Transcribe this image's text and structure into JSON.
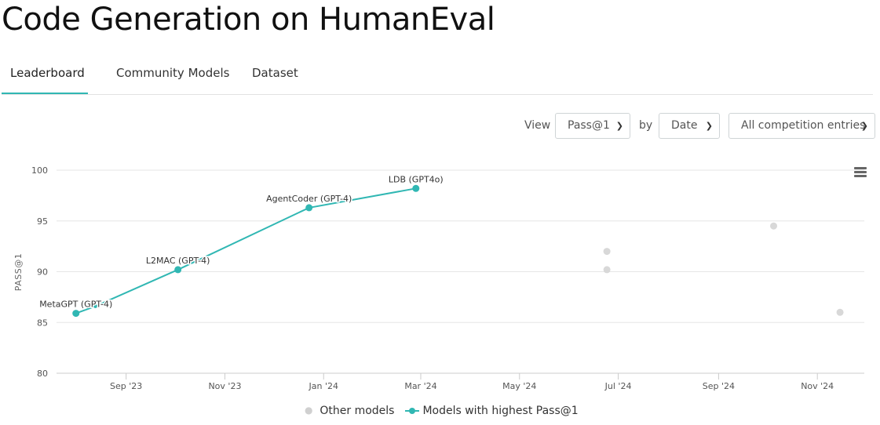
{
  "page": {
    "title": "Code Generation on HumanEval"
  },
  "tabs": [
    {
      "label": "Leaderboard",
      "active": true
    },
    {
      "label": "Community Models",
      "active": false
    },
    {
      "label": "Dataset",
      "active": false
    }
  ],
  "controls": {
    "view_label": "View",
    "metric_value": "Pass@1",
    "by_label": "by",
    "sort_value": "Date",
    "filter_value": "All competition entries"
  },
  "colors": {
    "accent": "#30b7b3",
    "other_models": "#d8d8d8",
    "grid": "#e6e6e6"
  },
  "icons": {
    "chart_menu": "hamburger-menu-icon",
    "dropdown": "chevron-down-icon"
  },
  "chart_data": {
    "type": "scatter",
    "ylabel": "PASS@1",
    "xlabel": "",
    "ylim": [
      80,
      100
    ],
    "yticks": [
      80,
      85,
      90,
      95,
      100
    ],
    "xlim": [
      "2023-07-20",
      "2024-11-30"
    ],
    "xticks": [
      {
        "date": "2023-09-01",
        "label": "Sep '23"
      },
      {
        "date": "2023-11-01",
        "label": "Nov '23"
      },
      {
        "date": "2024-01-01",
        "label": "Jan '24"
      },
      {
        "date": "2024-03-01",
        "label": "Mar '24"
      },
      {
        "date": "2024-05-01",
        "label": "May '24"
      },
      {
        "date": "2024-07-01",
        "label": "Jul '24"
      },
      {
        "date": "2024-09-01",
        "label": "Sep '24"
      },
      {
        "date": "2024-11-01",
        "label": "Nov '24"
      }
    ],
    "grid": true,
    "legend_position": "bottom",
    "series": [
      {
        "name": "Models with highest Pass@1",
        "type": "line",
        "color": "#30b7b3",
        "points": [
          {
            "x": "2023-08-01",
            "y": 85.9,
            "label": "MetaGPT (GPT-4)"
          },
          {
            "x": "2023-08-13",
            "y": 86.6,
            "label": ""
          },
          {
            "x": "2023-10-03",
            "y": 90.2,
            "label": "L2MAC (GPT-4)"
          },
          {
            "x": "2023-12-23",
            "y": 96.3,
            "label": "AgentCoder (GPT-4)"
          },
          {
            "x": "2024-02-27",
            "y": 98.2,
            "label": "LDB (GPT4o)"
          }
        ]
      },
      {
        "name": "Other models",
        "type": "scatter",
        "color": "#d8d8d8",
        "points": [
          {
            "x": "2024-06-24",
            "y": 92.0
          },
          {
            "x": "2024-06-24",
            "y": 90.2
          },
          {
            "x": "2024-10-05",
            "y": 94.5
          },
          {
            "x": "2024-11-15",
            "y": 86.0
          }
        ]
      }
    ]
  }
}
